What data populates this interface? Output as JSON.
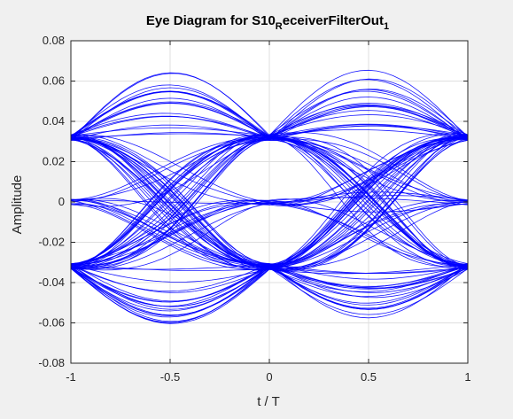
{
  "figure": {
    "background": "#f0f0f0",
    "axes_background": "#ffffff",
    "grid_color": "#dfdfdf",
    "axis_color": "#262626"
  },
  "chart_data": {
    "type": "line",
    "title": {
      "main": "Eye Diagram for S10",
      "subscript_1": "R",
      "middle": "eceiverFilterOut",
      "subscript_2": "1"
    },
    "xlabel": "t / T",
    "ylabel": "Amplitude",
    "xlim": [
      -1,
      1
    ],
    "ylim": [
      -0.08,
      0.08
    ],
    "x_ticks": [
      -1,
      -0.5,
      0,
      0.5,
      1
    ],
    "x_tick_labels": [
      "-1",
      "-0.5",
      "0",
      "0.5",
      "1"
    ],
    "y_ticks": [
      -0.08,
      -0.06,
      -0.04,
      -0.02,
      0,
      0.02,
      0.04,
      0.06,
      0.08
    ],
    "y_tick_labels": [
      "-0.08",
      "-0.06",
      "-0.04",
      "-0.02",
      "0",
      "0.02",
      "0.04",
      "0.06",
      "0.08"
    ],
    "grid": true,
    "line_color": "#0000ff",
    "eye": {
      "symbol_levels": [
        -0.032,
        0,
        0.032
      ],
      "open_levels_at_center": [
        -0.06,
        -0.032,
        0.032,
        0.065
      ],
      "eye_centers": [
        -0.5,
        0.5
      ],
      "crossing_points": [
        -1,
        0,
        1
      ],
      "trace_count": 110
    }
  }
}
